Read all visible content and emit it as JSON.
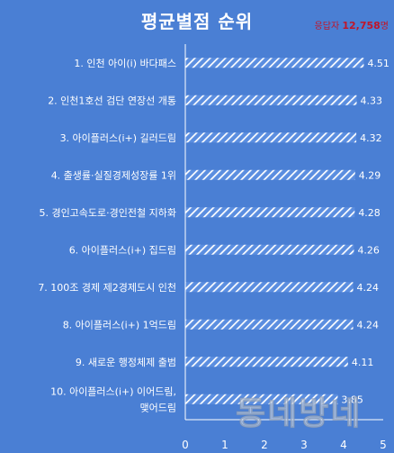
{
  "title": "평균별점 순위",
  "respondents": {
    "label": "응답자",
    "count": "12,758",
    "unit": "명"
  },
  "watermark": "동네방네",
  "colors": {
    "background": "#4a7fd4",
    "bar": "#ffffff",
    "text": "#ffffff"
  },
  "chart_data": {
    "type": "bar",
    "orientation": "horizontal",
    "bar_pattern": "diagonal-hatch",
    "categories": [
      "1. 인천 아이(i) 바다패스",
      "2. 인천1호선 검단 연장선 개통",
      "3. 아이플러스(i+) 길러드림",
      "4. 출생률·실질경제성장률 1위",
      "5. 경인고속도로·경인전철 지하화",
      "6. 아이플러스(i+) 집드림",
      "7. 100조 경제 제2경제도시 인천",
      "8. 아이플러스(i+) 1억드림",
      "9. 새로운 행정체제 출범",
      "10. 아이플러스(i+) 이어드림, 맺어드림"
    ],
    "values": [
      4.51,
      4.33,
      4.32,
      4.29,
      4.28,
      4.26,
      4.24,
      4.24,
      4.11,
      3.85
    ],
    "value_labels": [
      "4.51",
      "4.33",
      "4.32",
      "4.29",
      "4.28",
      "4.26",
      "4.24",
      "4.24",
      "4.11",
      "3.85"
    ],
    "xlim": [
      0,
      5
    ],
    "x_ticks": [
      "0",
      "1",
      "2",
      "3",
      "4",
      "5"
    ],
    "grid": false
  }
}
